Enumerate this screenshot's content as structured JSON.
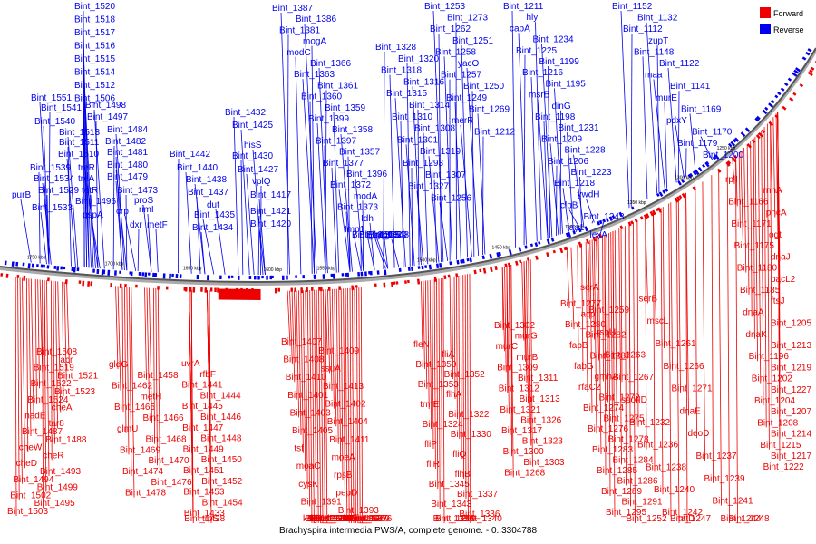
{
  "title": "Brachyspira intermedia PWS/A, complete genome. - 0..3304788",
  "legend": {
    "forward_label": "Forward",
    "reverse_label": "Reverse",
    "forward_color": "#ee0000",
    "reverse_color": "#0000ee"
  },
  "ticks": [
    "1750 kbp",
    "1700 kbp",
    "1650 kbp",
    "1600 kbp",
    "1550 kbp",
    "1500 kbp",
    "1450 kbp",
    "1400 kbp",
    "1350 kbp",
    "1300 kbp",
    "1250 kbp"
  ],
  "reverse_labels": [
    "Bint_1520",
    "Bint_1518",
    "Bint_1517",
    "Bint_1516",
    "Bint_1515",
    "Bint_1514",
    "Bint_1512",
    "Bint_1506",
    "Bint_1551",
    "Bint_1498",
    "Bint_1541",
    "Bint_1497",
    "Bint_1540",
    "Bint_1484",
    "Bint_1513",
    "Bint_1482",
    "Bint_1511",
    "Bint_1481",
    "Bint_1510",
    "Bint_1480",
    "Bint_1539",
    "treR",
    "Bint_1479",
    "Bint_1534",
    "treA",
    "Bint_1473",
    "Bint_1529",
    "tetR",
    "proS",
    "purB",
    "Bint_1496",
    "rimI",
    "Bint_1533",
    "gspA",
    "crp",
    "dxr",
    "metF",
    "Bint_1432",
    "Bint_1425",
    "hisS",
    "Bint_1442",
    "Bint_1430",
    "Bint_1440",
    "Bint_1427",
    "Bint_1438",
    "vplQ",
    "Bint_1437",
    "Bint_1417",
    "dut",
    "Bint_1435",
    "Bint_1421",
    "Bint_1434",
    "Bint_1420",
    "Bint_1387",
    "Bint_1386",
    "Bint_1381",
    "mogA",
    "modC",
    "Bint_1366",
    "Bint_1363",
    "Bint_1361",
    "Bint_1360",
    "Bint_1359",
    "Bint_1399",
    "Bint_1358",
    "Bint_1397",
    "Bint_1357",
    "Bint_1377",
    "Bint_1396",
    "Bint_1372",
    "modA",
    "Bint_1373",
    "Idh",
    "Imp1",
    "Bint_1348",
    "Bint_1356",
    "recO",
    "Bint_1355",
    "uvrB",
    "Bint_1329",
    "Bint_1328",
    "Bint_1320",
    "Bint_1318",
    "Bint_1316",
    "Bint_1315",
    "Bint_1314",
    "Bint_1310",
    "Bint_1308",
    "Bint_1301",
    "Bint_1319",
    "Bint_1293",
    "Bint_1307",
    "Bint_1327",
    "Bint_1256",
    "Bint_1253",
    "Bint_1273",
    "Bint_1262",
    "Bint_1251",
    "Bint_1258",
    "yacO",
    "Bint_1257",
    "Bint_1250",
    "Bint_1249",
    "Bint_1269",
    "merR",
    "Bint_1212",
    "Bint_1211",
    "hly",
    "capA",
    "Bint_1234",
    "Bint_1225",
    "Bint_1199",
    "Bint_1216",
    "Bint_1195",
    "msrB",
    "dinG",
    "Bint_1198",
    "Bint_1231",
    "Bint_1209",
    "Bint_1228",
    "Bint_1206",
    "Bint_1223",
    "Bint_1218",
    "ywdH",
    "clpB",
    "Bint_1243",
    "faa1",
    "lexA",
    "Bint_1152",
    "Bint_1132",
    "Bint_1112",
    "zupT",
    "Bint_1148",
    "Bint_1122",
    "maa",
    "Bint_1141",
    "murE",
    "Bint_1169",
    "pdxY",
    "Bint_1170",
    "Bint_1179",
    "Bint_1200"
  ],
  "forward_labels": [
    "Bint_1508",
    "acr",
    "Bint_1519",
    "Bint_1521",
    "Bint_1522",
    "Bint_1523",
    "Bint_1524",
    "cheA",
    "nadE",
    "tar8",
    "Bint_1487",
    "Bint_1488",
    "cheW",
    "cheR",
    "cheD",
    "Bint_1493",
    "Bint_1494",
    "Bint_1499",
    "Bint_1502",
    "Bint_1495",
    "Bint_1503",
    "gldG",
    "Bint_1458",
    "Bint_1462",
    "metH",
    "Bint_1465",
    "Bint_1466",
    "glmU",
    "Bint_1468",
    "Bint_1469",
    "Bint_1470",
    "Bint_1474",
    "Bint_1476",
    "Bint_1478",
    "uvrA",
    "rfbF",
    "Bint_1441",
    "Bint_1444",
    "Bint_1445",
    "Bint_1446",
    "Bint_1447",
    "Bint_1448",
    "Bint_1449",
    "Bint_1450",
    "Bint_1451",
    "Bint_1452",
    "Bint_1453",
    "Bint_1454",
    "Bint_1433",
    "trpS",
    "Bint_1428",
    "Bint_1407",
    "Bint_1409",
    "Bint_1408",
    "ssuA",
    "Bint_1410",
    "Bint_1413",
    "Bint_1401",
    "Bint_1402",
    "Bint_1403",
    "Bint_1404",
    "Bint_1405",
    "Bint_1411",
    "tsf",
    "moeA",
    "moaC",
    "rpsB",
    "cysK",
    "pepD",
    "Bint_1391",
    "Bint_1393",
    "kdgK",
    "rluC",
    "Bint_1362",
    "Bint_1364",
    "Bint_1370",
    "Bint_1374",
    "Bint_1365",
    "Bint_1367",
    "Bint_1368",
    "Bint_1369",
    "Bint_1371",
    "Bint_1376",
    "Bint_1382",
    "moaA",
    "selB",
    "fleN",
    "fliA",
    "Bint_1350",
    "Bint_1352",
    "Bint_1353",
    "flhA",
    "trmE",
    "Bint_1322",
    "Bint_1324",
    "Bint_1330",
    "fliP",
    "fliQ",
    "fliR",
    "flhB",
    "Bint_1345",
    "Bint_1337",
    "Bint_1343",
    "Bint_1336",
    "Bint_1339",
    "Bint_1340",
    "Bint_1299",
    "Bint_1302",
    "murG",
    "murC",
    "murB",
    "Bint_1309",
    "Bint_1311",
    "Bint_1312",
    "Bint_1313",
    "Bint_1321",
    "Bint_1326",
    "Bint_1317",
    "Bint_1323",
    "Bint_1300",
    "Bint_1303",
    "Bint_1268",
    "Bint_1277",
    "acp",
    "Bint_1280",
    "Bint_1282",
    "fabB",
    "Bint_1287",
    "fabG",
    "gmhA",
    "rfaC2",
    "Bint_1272",
    "Bint_1274",
    "Bint_1275",
    "Bint_1276",
    "Bint_1278",
    "Bint_1283",
    "Bint_1284",
    "Bint_1285",
    "Bint_1286",
    "Bint_1289",
    "Bint_1291",
    "Bint_1295",
    "Bint_1252",
    "serA",
    "serB",
    "Bint_1259",
    "mscL",
    "rsbU",
    "Bint_1261",
    "Bint_1263",
    "Bint_1266",
    "Bint_1267",
    "Bint_1271",
    "spoIID",
    "dnaE",
    "Bint_1232",
    "deoD",
    "Bint_1236",
    "Bint_1237",
    "Bint_1238",
    "Bint_1239",
    "Bint_1240",
    "Bint_1241",
    "Bint_1242",
    "Bint_1244",
    "Bint_1247",
    "Bint_1248",
    "tatD",
    "rplI",
    "rnhA",
    "Bint_1166",
    "pncA",
    "Bint_1171",
    "ogt",
    "Bint_1175",
    "dnaJ",
    "Bint_1180",
    "pacL2",
    "Bint_1185",
    "ftsJ",
    "dnaA",
    "Bint_1205",
    "dnaK",
    "Bint_1213",
    "Bint_1196",
    "Bint_1219",
    "Bint_1202",
    "Bint_1227",
    "Bint_1204",
    "Bint_1207",
    "Bint_1208",
    "Bint_1214",
    "Bint_1215",
    "Bint_1217",
    "Bint_1222"
  ]
}
